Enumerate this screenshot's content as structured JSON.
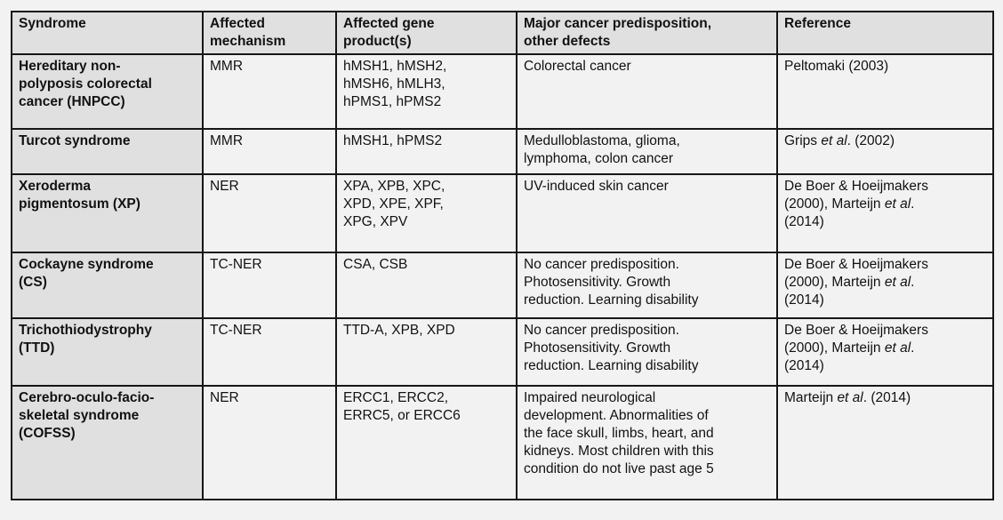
{
  "colors": {
    "page_background": "#f2f2f2",
    "header_background": "#e0e0e0",
    "cell_background": "#f2f2f2",
    "border": "#161616",
    "text": "#121212"
  },
  "table": {
    "columns": [
      "Syndrome",
      "Affected\nmechanism",
      "Affected gene\nproduct(s)",
      "Major cancer predisposition,\nother defects",
      "Reference"
    ],
    "rows": [
      {
        "syndrome": "Hereditary non-\npolyposis colorectal\ncancer (HNPCC)",
        "mechanism": "MMR",
        "genes": "hMSH1, hMSH2,\nhMSH6, hMLH3,\nhPMS1, hPMS2",
        "defects": "Colorectal cancer",
        "reference": [
          {
            "t": "Peltomaki (2003)"
          }
        ]
      },
      {
        "syndrome": "Turcot syndrome",
        "mechanism": "MMR",
        "genes": "hMSH1, hPMS2",
        "defects": "Medulloblastoma, glioma,\nlymphoma, colon cancer",
        "reference": [
          {
            "t": "Grips "
          },
          {
            "t": "et al",
            "i": true
          },
          {
            "t": ". (2002)"
          }
        ]
      },
      {
        "syndrome": "Xeroderma\npigmentosum (XP)",
        "mechanism": "NER",
        "genes": "XPA, XPB, XPC,\nXPD, XPE, XPF,\nXPG, XPV",
        "defects": "UV-induced skin cancer",
        "reference": [
          {
            "t": "De Boer & Hoeijmakers\n(2000), Marteijn "
          },
          {
            "t": "et al",
            "i": true
          },
          {
            "t": ".\n(2014)"
          }
        ]
      },
      {
        "syndrome": "Cockayne syndrome\n(CS)",
        "mechanism": "TC-NER",
        "genes": "CSA, CSB",
        "defects": "No cancer predisposition.\nPhotosensitivity. Growth\nreduction. Learning disability",
        "reference": [
          {
            "t": "De Boer & Hoeijmakers\n(2000), Marteijn "
          },
          {
            "t": "et al",
            "i": true
          },
          {
            "t": ".\n(2014)"
          }
        ]
      },
      {
        "syndrome": "Trichothiodystrophy\n(TTD)",
        "mechanism": "TC-NER",
        "genes": "TTD-A, XPB, XPD",
        "defects": "No cancer predisposition.\nPhotosensitivity. Growth\nreduction. Learning disability",
        "reference": [
          {
            "t": "De Boer & Hoeijmakers\n(2000), Marteijn "
          },
          {
            "t": "et al",
            "i": true
          },
          {
            "t": ".\n(2014)"
          }
        ]
      },
      {
        "syndrome": "Cerebro-oculo-facio-\nskeletal syndrome\n(COFSS)",
        "mechanism": "NER",
        "genes": "ERCC1, ERCC2,\nERRC5, or ERCC6",
        "defects": "Impaired neurological\ndevelopment. Abnormalities of\nthe face skull, limbs, heart, and\nkidneys. Most children with this\ncondition do not live past age 5",
        "reference": [
          {
            "t": "Marteijn "
          },
          {
            "t": "et al",
            "i": true
          },
          {
            "t": ". (2014)"
          }
        ]
      }
    ]
  }
}
